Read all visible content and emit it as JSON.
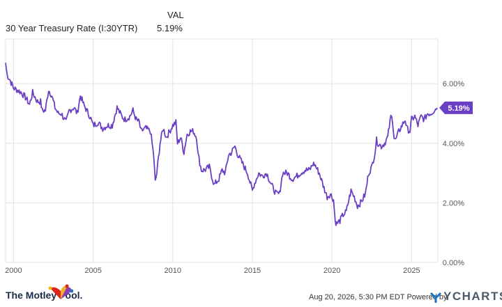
{
  "legend": {
    "column_header": "VAL",
    "series_name": "30 Year Treasury Rate (I:30YTR)",
    "series_value": "5.19%"
  },
  "footer": {
    "brand": "The Motley Fool.",
    "timestamp": "Aug 20, 2026, 5:30 PM EDT Powered by",
    "provider": "YCHARTS"
  },
  "colors": {
    "line": "#6a3fc4",
    "badge": "#6a3fc4",
    "grid": "#e3e3e3"
  },
  "chart_data": {
    "type": "line",
    "series": [
      {
        "name": "30 Year Treasury Rate (I:30YTR)",
        "color": "#6a3fc4",
        "x": [
          1999.5,
          1999.6,
          1999.8,
          2000.0,
          2000.2,
          2000.5,
          2000.8,
          2001.0,
          2001.2,
          2001.5,
          2001.7,
          2001.8,
          2002.0,
          2002.2,
          2002.4,
          2002.6,
          2002.8,
          2003.0,
          2003.3,
          2003.5,
          2003.8,
          2004.0,
          2004.2,
          2004.4,
          2004.6,
          2004.8,
          2005.0,
          2005.3,
          2005.6,
          2005.9,
          2006.2,
          2006.5,
          2006.8,
          2007.0,
          2007.3,
          2007.5,
          2007.7,
          2007.9,
          2008.0,
          2008.3,
          2008.6,
          2008.8,
          2008.9,
          2009.0,
          2009.2,
          2009.4,
          2009.6,
          2009.8,
          2010.0,
          2010.2,
          2010.3,
          2010.5,
          2010.7,
          2010.9,
          2011.1,
          2011.3,
          2011.5,
          2011.6,
          2011.8,
          2012.0,
          2012.3,
          2012.6,
          2012.9,
          2013.1,
          2013.3,
          2013.5,
          2013.7,
          2013.9,
          2014.1,
          2014.4,
          2014.7,
          2015.0,
          2015.1,
          2015.4,
          2015.6,
          2015.9,
          2016.2,
          2016.5,
          2016.7,
          2016.9,
          2017.2,
          2017.5,
          2017.8,
          2018.0,
          2018.3,
          2018.6,
          2018.8,
          2018.9,
          2019.2,
          2019.5,
          2019.7,
          2019.9,
          2020.1,
          2020.2,
          2020.3,
          2020.5,
          2020.7,
          2020.9,
          2021.1,
          2021.2,
          2021.4,
          2021.6,
          2021.8,
          2021.9,
          2022.1,
          2022.3,
          2022.5,
          2022.7,
          2022.8,
          2022.9,
          2023.1,
          2023.3,
          2023.5,
          2023.7,
          2023.8,
          2023.9,
          2024.0,
          2024.2,
          2024.4,
          2024.6,
          2024.7,
          2024.9,
          2025.0,
          2025.2,
          2025.4,
          2025.6,
          2025.8,
          2026.0,
          2026.2,
          2026.4,
          2026.6
        ],
        "y": [
          6.7,
          6.3,
          6.1,
          5.85,
          5.8,
          5.7,
          5.5,
          5.3,
          5.7,
          5.4,
          5.4,
          5.1,
          5.1,
          5.8,
          5.6,
          5.2,
          5.0,
          5.0,
          4.7,
          5.1,
          5.2,
          5.0,
          5.6,
          5.3,
          5.1,
          4.9,
          4.6,
          4.7,
          4.5,
          4.6,
          4.6,
          5.2,
          4.9,
          4.8,
          4.9,
          5.1,
          4.8,
          4.7,
          4.4,
          4.5,
          4.4,
          3.6,
          2.7,
          3.0,
          4.0,
          4.5,
          4.2,
          4.4,
          4.6,
          4.7,
          4.0,
          4.2,
          3.7,
          4.3,
          4.4,
          4.4,
          4.2,
          3.6,
          3.1,
          3.1,
          3.2,
          2.6,
          2.8,
          3.1,
          3.0,
          3.6,
          3.7,
          3.9,
          3.6,
          3.3,
          3.0,
          2.4,
          2.6,
          3.0,
          2.9,
          3.0,
          2.6,
          2.3,
          2.3,
          3.0,
          3.0,
          2.8,
          2.9,
          3.0,
          3.1,
          3.1,
          3.3,
          3.3,
          3.0,
          2.5,
          2.2,
          2.3,
          2.1,
          1.4,
          1.3,
          1.4,
          1.6,
          1.7,
          2.2,
          2.4,
          2.2,
          1.9,
          2.0,
          2.1,
          2.3,
          3.0,
          3.2,
          3.7,
          4.1,
          4.0,
          3.9,
          4.0,
          4.2,
          4.9,
          4.8,
          4.2,
          4.1,
          4.4,
          4.6,
          4.8,
          4.5,
          4.4,
          4.8,
          4.9,
          4.6,
          4.9,
          4.8,
          5.0,
          5.0,
          5.1,
          5.19
        ]
      }
    ],
    "xlim": [
      1999.5,
      2026.65
    ],
    "ylim": [
      0,
      7.5
    ],
    "x_ticks": [
      {
        "v": 2000,
        "label": "2000"
      },
      {
        "v": 2005,
        "label": "2005"
      },
      {
        "v": 2010,
        "label": "2010"
      },
      {
        "v": 2015,
        "label": "2015"
      },
      {
        "v": 2020,
        "label": "2020"
      },
      {
        "v": 2025,
        "label": "2025"
      }
    ],
    "y_ticks": [
      {
        "v": 0,
        "label": "0.00%"
      },
      {
        "v": 2,
        "label": "2.00%"
      },
      {
        "v": 4,
        "label": "4.00%"
      },
      {
        "v": 6,
        "label": "6.00%"
      }
    ],
    "last_value_label": "5.19%",
    "last_value": 5.19,
    "grid": true
  }
}
